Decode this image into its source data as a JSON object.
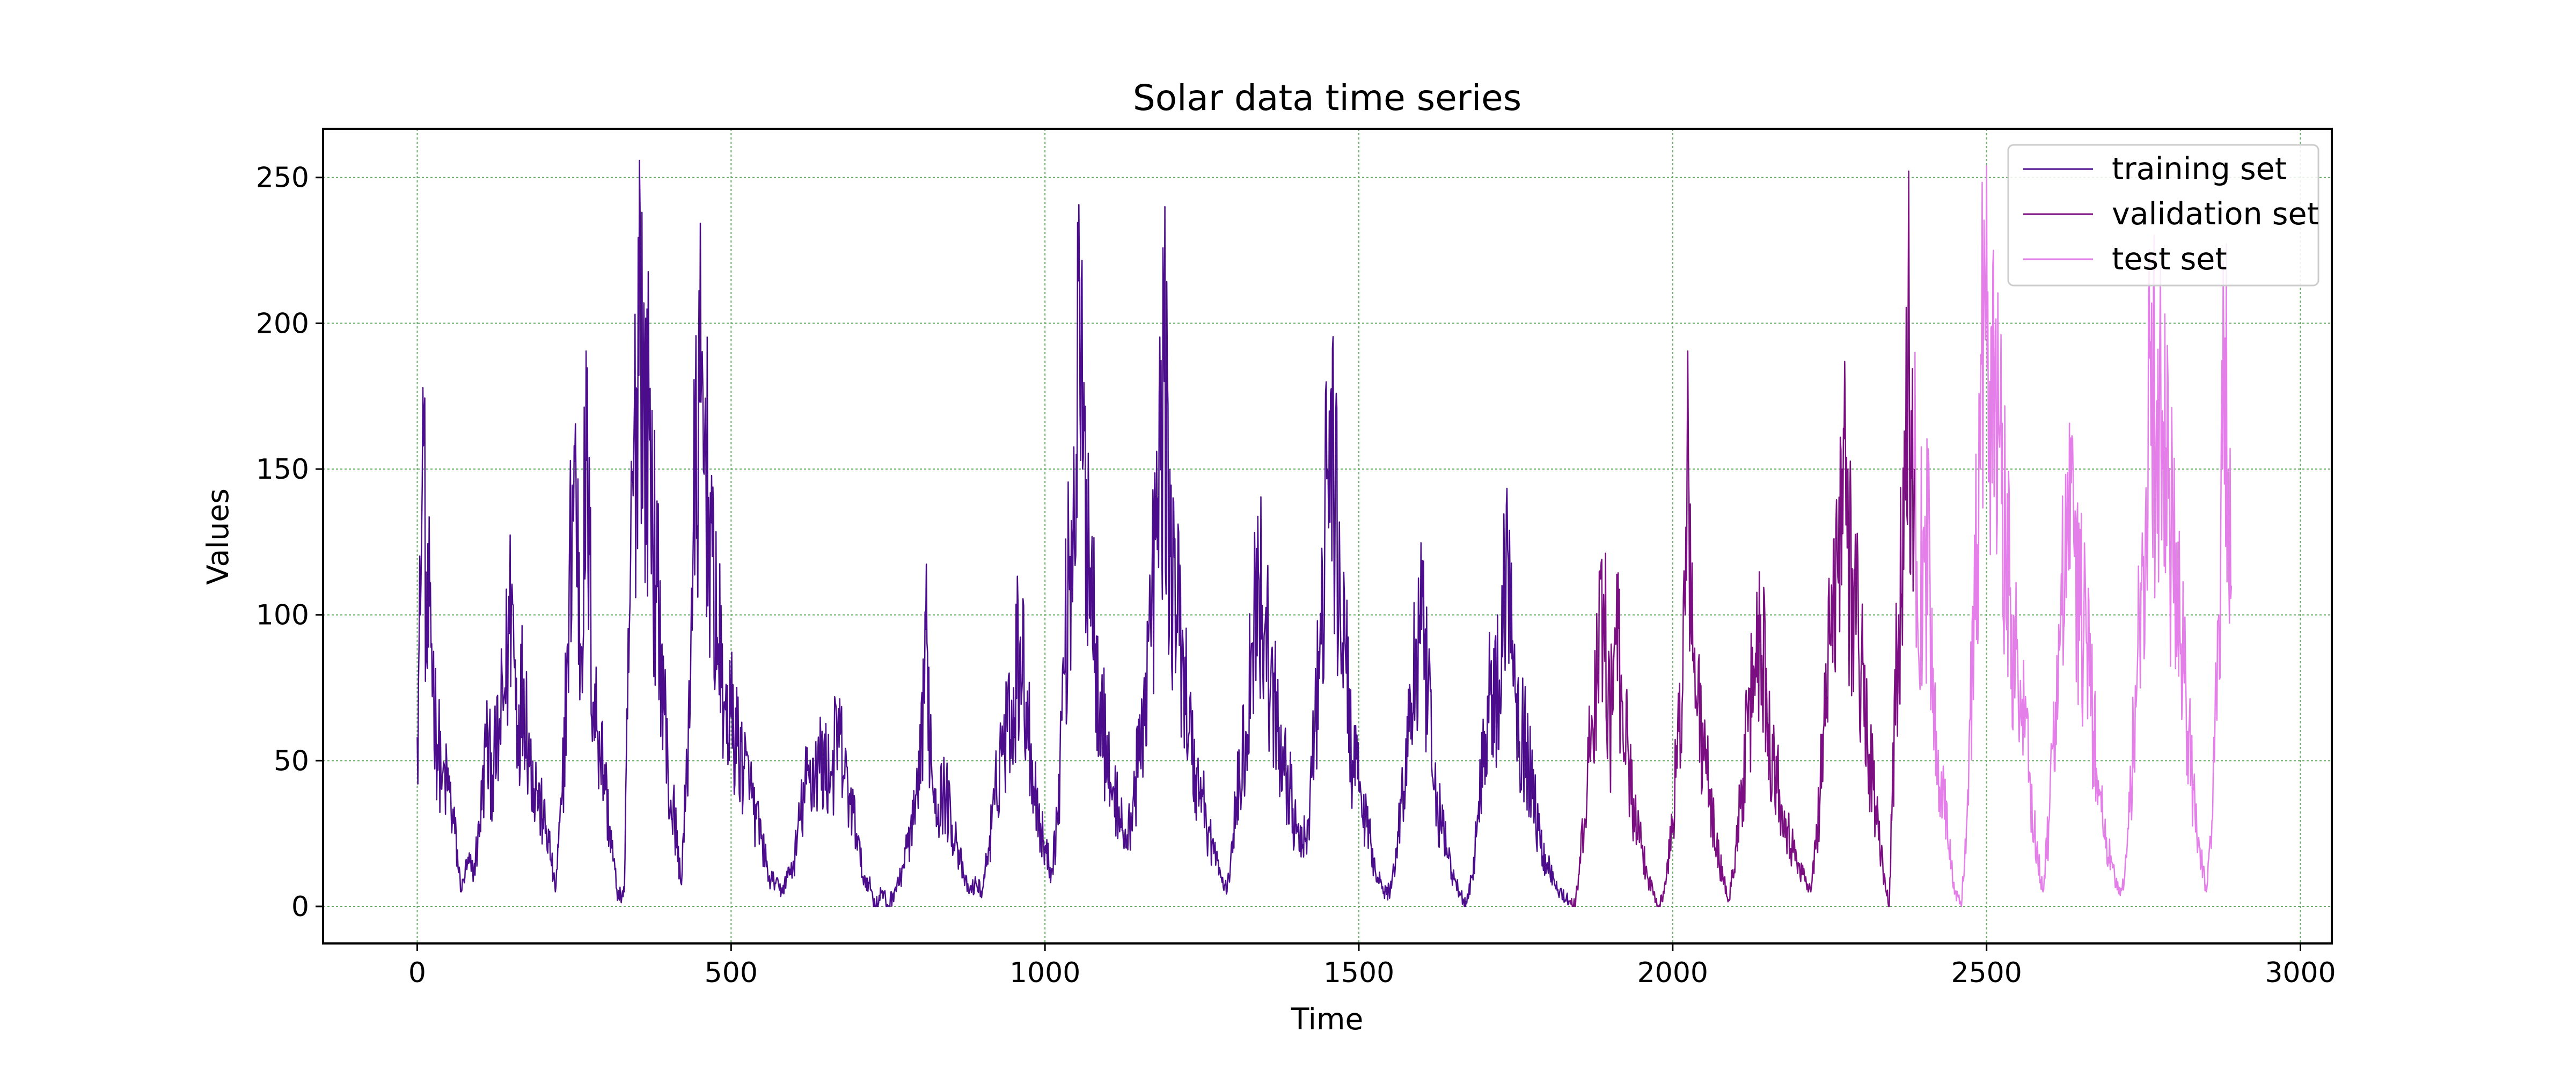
{
  "chart_data": {
    "type": "line",
    "title": "Solar data time series",
    "xlabel": "Time",
    "ylabel": "Values",
    "xlim": [
      -150,
      3050
    ],
    "ylim": [
      -12.7,
      266.7
    ],
    "x_ticks": [
      0,
      500,
      1000,
      1500,
      2000,
      2500,
      3000
    ],
    "x_tick_labels": [
      "0",
      "500",
      "1000",
      "1500",
      "2000",
      "2500",
      "3000"
    ],
    "y_ticks": [
      0,
      50,
      100,
      150,
      200,
      250
    ],
    "y_tick_labels": [
      "0",
      "50",
      "100",
      "150",
      "200",
      "250"
    ],
    "grid": true,
    "grid_color": "#6aae6a",
    "legend_position": "top-right",
    "series": [
      {
        "name": "training set",
        "color": "#4b0d8c",
        "x_start": 0,
        "x_end": 1835,
        "keypoints": [
          [
            0,
            58
          ],
          [
            5,
            100
          ],
          [
            10,
            158
          ],
          [
            15,
            85
          ],
          [
            20,
            103
          ],
          [
            30,
            60
          ],
          [
            40,
            45
          ],
          [
            50,
            40
          ],
          [
            60,
            25
          ],
          [
            70,
            5
          ],
          [
            80,
            15
          ],
          [
            90,
            12
          ],
          [
            100,
            28
          ],
          [
            110,
            55
          ],
          [
            120,
            45
          ],
          [
            130,
            58
          ],
          [
            140,
            75
          ],
          [
            150,
            107
          ],
          [
            160,
            62
          ],
          [
            170,
            78
          ],
          [
            180,
            50
          ],
          [
            190,
            40
          ],
          [
            200,
            30
          ],
          [
            210,
            22
          ],
          [
            220,
            5
          ],
          [
            230,
            35
          ],
          [
            240,
            90
          ],
          [
            250,
            158
          ],
          [
            260,
            90
          ],
          [
            270,
            153
          ],
          [
            280,
            70
          ],
          [
            290,
            60
          ],
          [
            300,
            40
          ],
          [
            310,
            20
          ],
          [
            320,
            3
          ],
          [
            330,
            5
          ],
          [
            340,
            120
          ],
          [
            350,
            177
          ],
          [
            355,
            238
          ],
          [
            360,
            170
          ],
          [
            370,
            160
          ],
          [
            380,
            110
          ],
          [
            390,
            90
          ],
          [
            400,
            40
          ],
          [
            410,
            30
          ],
          [
            420,
            8
          ],
          [
            430,
            45
          ],
          [
            440,
            130
          ],
          [
            450,
            173
          ],
          [
            460,
            150
          ],
          [
            470,
            120
          ],
          [
            480,
            90
          ],
          [
            490,
            70
          ],
          [
            500,
            65
          ],
          [
            510,
            55
          ],
          [
            520,
            48
          ],
          [
            530,
            40
          ],
          [
            540,
            30
          ],
          [
            550,
            22
          ],
          [
            560,
            10
          ],
          [
            570,
            8
          ],
          [
            580,
            5
          ],
          [
            590,
            10
          ],
          [
            600,
            15
          ],
          [
            610,
            30
          ],
          [
            620,
            42
          ],
          [
            640,
            50
          ],
          [
            660,
            45
          ],
          [
            670,
            60
          ],
          [
            680,
            45
          ],
          [
            690,
            35
          ],
          [
            700,
            25
          ],
          [
            710,
            10
          ],
          [
            720,
            8
          ],
          [
            730,
            0
          ],
          [
            740,
            5
          ],
          [
            750,
            0
          ],
          [
            760,
            5
          ],
          [
            770,
            10
          ],
          [
            780,
            20
          ],
          [
            790,
            28
          ],
          [
            800,
            40
          ],
          [
            810,
            95
          ],
          [
            820,
            45
          ],
          [
            830,
            35
          ],
          [
            840,
            40
          ],
          [
            850,
            30
          ],
          [
            860,
            22
          ],
          [
            870,
            10
          ],
          [
            880,
            5
          ],
          [
            890,
            8
          ],
          [
            900,
            5
          ],
          [
            910,
            20
          ],
          [
            920,
            35
          ],
          [
            930,
            55
          ],
          [
            940,
            60
          ],
          [
            950,
            75
          ],
          [
            960,
            90
          ],
          [
            970,
            70
          ],
          [
            980,
            50
          ],
          [
            990,
            30
          ],
          [
            1000,
            20
          ],
          [
            1010,
            12
          ],
          [
            1020,
            30
          ],
          [
            1030,
            80
          ],
          [
            1040,
            120
          ],
          [
            1050,
            155
          ],
          [
            1055,
            206
          ],
          [
            1060,
            150
          ],
          [
            1070,
            130
          ],
          [
            1080,
            90
          ],
          [
            1090,
            70
          ],
          [
            1100,
            45
          ],
          [
            1110,
            40
          ],
          [
            1120,
            30
          ],
          [
            1130,
            20
          ],
          [
            1140,
            35
          ],
          [
            1150,
            50
          ],
          [
            1160,
            80
          ],
          [
            1170,
            100
          ],
          [
            1180,
            140
          ],
          [
            1190,
            180
          ],
          [
            1200,
            120
          ],
          [
            1210,
            100
          ],
          [
            1220,
            90
          ],
          [
            1230,
            60
          ],
          [
            1240,
            45
          ],
          [
            1250,
            40
          ],
          [
            1260,
            25
          ],
          [
            1270,
            20
          ],
          [
            1280,
            10
          ],
          [
            1290,
            5
          ],
          [
            1300,
            25
          ],
          [
            1310,
            45
          ],
          [
            1320,
            60
          ],
          [
            1330,
            90
          ],
          [
            1340,
            115
          ],
          [
            1350,
            95
          ],
          [
            1360,
            80
          ],
          [
            1370,
            60
          ],
          [
            1380,
            50
          ],
          [
            1390,
            40
          ],
          [
            1400,
            25
          ],
          [
            1410,
            20
          ],
          [
            1420,
            30
          ],
          [
            1430,
            60
          ],
          [
            1440,
            90
          ],
          [
            1450,
            150
          ],
          [
            1455,
            176
          ],
          [
            1460,
            140
          ],
          [
            1470,
            110
          ],
          [
            1480,
            80
          ],
          [
            1490,
            50
          ],
          [
            1500,
            40
          ],
          [
            1510,
            30
          ],
          [
            1520,
            20
          ],
          [
            1530,
            10
          ],
          [
            1540,
            5
          ],
          [
            1550,
            5
          ],
          [
            1560,
            20
          ],
          [
            1570,
            40
          ],
          [
            1580,
            60
          ],
          [
            1590,
            80
          ],
          [
            1600,
            95
          ],
          [
            1610,
            70
          ],
          [
            1620,
            40
          ],
          [
            1630,
            30
          ],
          [
            1640,
            20
          ],
          [
            1650,
            10
          ],
          [
            1660,
            5
          ],
          [
            1670,
            0
          ],
          [
            1680,
            10
          ],
          [
            1690,
            30
          ],
          [
            1700,
            60
          ],
          [
            1710,
            80
          ],
          [
            1720,
            70
          ],
          [
            1730,
            100
          ],
          [
            1740,
            129
          ],
          [
            1750,
            70
          ],
          [
            1760,
            60
          ],
          [
            1770,
            50
          ],
          [
            1780,
            35
          ],
          [
            1790,
            20
          ],
          [
            1800,
            15
          ],
          [
            1810,
            10
          ],
          [
            1820,
            5
          ],
          [
            1835,
            2
          ]
        ],
        "values_sampled": true
      },
      {
        "name": "validation set",
        "color": "#7b0f82",
        "x_start": 1835,
        "x_end": 2385,
        "keypoints": [
          [
            1835,
            2
          ],
          [
            1845,
            0
          ],
          [
            1860,
            30
          ],
          [
            1870,
            60
          ],
          [
            1880,
            80
          ],
          [
            1890,
            107
          ],
          [
            1900,
            60
          ],
          [
            1910,
            90
          ],
          [
            1920,
            70
          ],
          [
            1930,
            50
          ],
          [
            1940,
            30
          ],
          [
            1950,
            20
          ],
          [
            1960,
            10
          ],
          [
            1970,
            5
          ],
          [
            1980,
            0
          ],
          [
            1990,
            10
          ],
          [
            2000,
            30
          ],
          [
            2010,
            60
          ],
          [
            2020,
            100
          ],
          [
            2025,
            154
          ],
          [
            2030,
            90
          ],
          [
            2040,
            70
          ],
          [
            2050,
            50
          ],
          [
            2060,
            40
          ],
          [
            2070,
            20
          ],
          [
            2080,
            10
          ],
          [
            2090,
            2
          ],
          [
            2100,
            20
          ],
          [
            2110,
            40
          ],
          [
            2120,
            60
          ],
          [
            2130,
            80
          ],
          [
            2140,
            100
          ],
          [
            2150,
            70
          ],
          [
            2160,
            50
          ],
          [
            2170,
            40
          ],
          [
            2180,
            30
          ],
          [
            2190,
            20
          ],
          [
            2200,
            15
          ],
          [
            2210,
            10
          ],
          [
            2220,
            5
          ],
          [
            2230,
            25
          ],
          [
            2240,
            60
          ],
          [
            2250,
            90
          ],
          [
            2260,
            130
          ],
          [
            2270,
            150
          ],
          [
            2275,
            165
          ],
          [
            2280,
            120
          ],
          [
            2290,
            110
          ],
          [
            2300,
            80
          ],
          [
            2310,
            60
          ],
          [
            2320,
            40
          ],
          [
            2330,
            20
          ],
          [
            2340,
            5
          ],
          [
            2345,
            0
          ],
          [
            2350,
            40
          ],
          [
            2360,
            100
          ],
          [
            2370,
            150
          ],
          [
            2375,
            201
          ],
          [
            2380,
            170
          ],
          [
            2385,
            150
          ]
        ],
        "values_sampled": true
      },
      {
        "name": "test set",
        "color": "#e47ee8",
        "x_start": 2385,
        "x_end": 2890,
        "keypoints": [
          [
            2385,
            150
          ],
          [
            2390,
            100
          ],
          [
            2400,
            130
          ],
          [
            2410,
            110
          ],
          [
            2420,
            60
          ],
          [
            2430,
            40
          ],
          [
            2440,
            20
          ],
          [
            2450,
            5
          ],
          [
            2460,
            0
          ],
          [
            2470,
            40
          ],
          [
            2480,
            100
          ],
          [
            2490,
            150
          ],
          [
            2495,
            200
          ],
          [
            2500,
            254
          ],
          [
            2505,
            180
          ],
          [
            2510,
            220
          ],
          [
            2520,
            160
          ],
          [
            2530,
            130
          ],
          [
            2540,
            100
          ],
          [
            2550,
            80
          ],
          [
            2560,
            60
          ],
          [
            2570,
            40
          ],
          [
            2580,
            20
          ],
          [
            2590,
            5
          ],
          [
            2600,
            30
          ],
          [
            2610,
            70
          ],
          [
            2620,
            100
          ],
          [
            2630,
            130
          ],
          [
            2640,
            120
          ],
          [
            2650,
            100
          ],
          [
            2660,
            90
          ],
          [
            2670,
            60
          ],
          [
            2680,
            40
          ],
          [
            2690,
            20
          ],
          [
            2700,
            15
          ],
          [
            2710,
            5
          ],
          [
            2720,
            10
          ],
          [
            2730,
            40
          ],
          [
            2740,
            80
          ],
          [
            2750,
            120
          ],
          [
            2760,
            188
          ],
          [
            2770,
            160
          ],
          [
            2780,
            170
          ],
          [
            2790,
            140
          ],
          [
            2800,
            110
          ],
          [
            2810,
            90
          ],
          [
            2820,
            60
          ],
          [
            2830,
            40
          ],
          [
            2840,
            20
          ],
          [
            2850,
            5
          ],
          [
            2860,
            30
          ],
          [
            2870,
            100
          ],
          [
            2880,
            195
          ],
          [
            2885,
            150
          ],
          [
            2890,
            110
          ]
        ],
        "values_sampled": true
      }
    ]
  }
}
